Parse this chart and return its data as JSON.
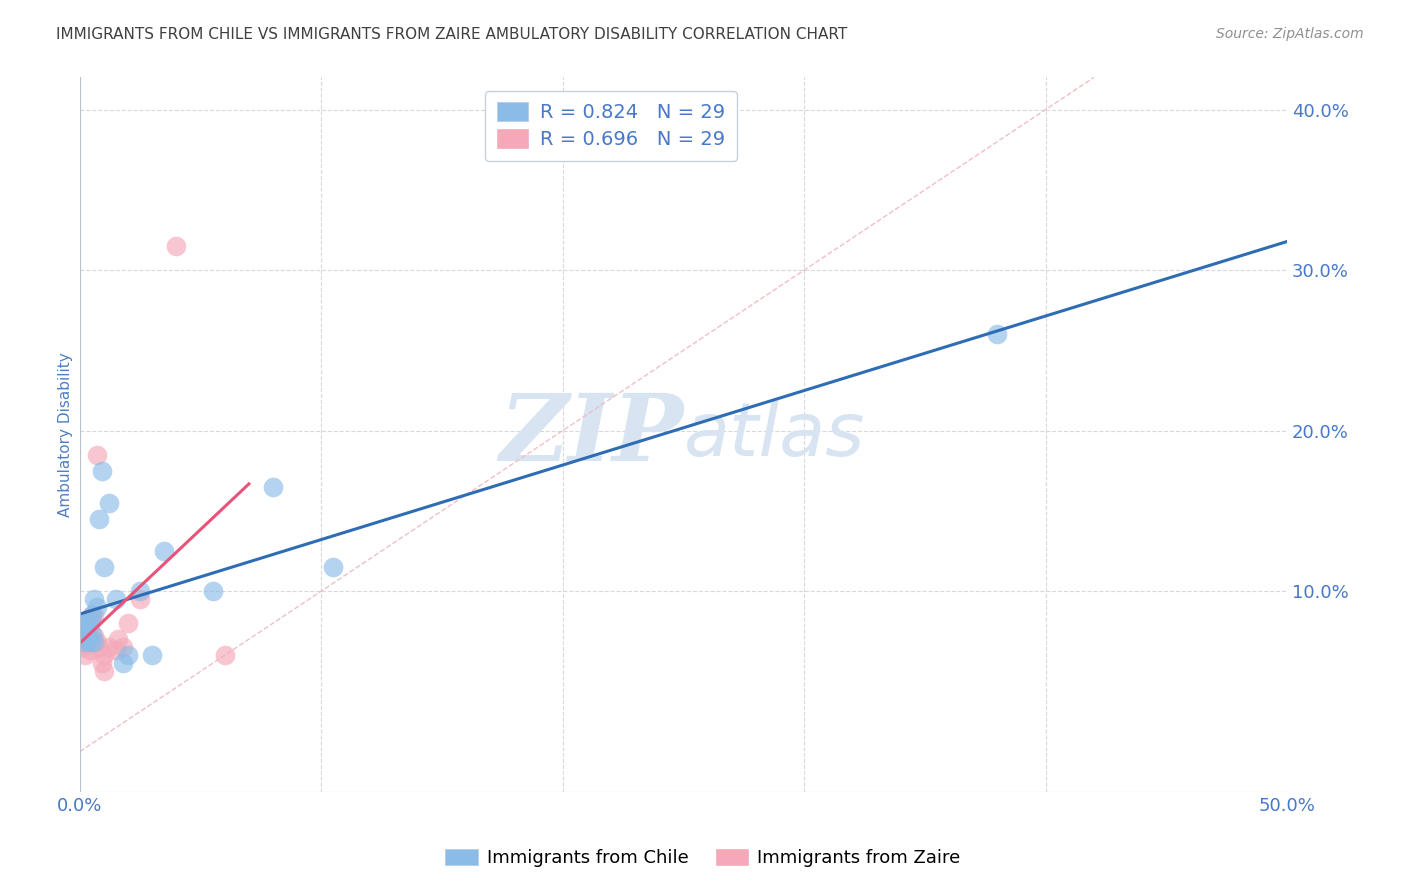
{
  "title": "IMMIGRANTS FROM CHILE VS IMMIGRANTS FROM ZAIRE AMBULATORY DISABILITY CORRELATION CHART",
  "source": "Source: ZipAtlas.com",
  "ylabel": "Ambulatory Disability",
  "xlim": [
    0.0,
    0.5
  ],
  "ylim": [
    -0.025,
    0.42
  ],
  "yticks_right": [
    0.1,
    0.2,
    0.3,
    0.4
  ],
  "ytick_right_labels": [
    "10.0%",
    "20.0%",
    "30.0%",
    "40.0%"
  ],
  "legend_r_chile": "R = 0.824",
  "legend_n_chile": "N = 29",
  "legend_r_zaire": "R = 0.696",
  "legend_n_zaire": "N = 29",
  "color_chile": "#8BBCE8",
  "color_zaire": "#F4A8B8",
  "line_color_chile": "#2E6DB4",
  "line_color_zaire": "#E8537A",
  "diag_line_color": "#F0B8C0",
  "watermark_zip": "ZIP",
  "watermark_atlas": "atlas",
  "watermark_color": "#D8E4F2",
  "background": "#FFFFFF",
  "title_color": "#404040",
  "axis_label_color": "#5080C0",
  "grid_color": "#D8D8E0",
  "tick_label_color": "#4878C8",
  "source_color": "#909090",
  "chile_x": [
    0.001,
    0.001,
    0.002,
    0.002,
    0.002,
    0.003,
    0.003,
    0.003,
    0.004,
    0.004,
    0.005,
    0.005,
    0.006,
    0.006,
    0.007,
    0.008,
    0.009,
    0.01,
    0.012,
    0.015,
    0.018,
    0.02,
    0.025,
    0.03,
    0.035,
    0.055,
    0.08,
    0.105,
    0.38
  ],
  "chile_y": [
    0.073,
    0.08,
    0.075,
    0.068,
    0.07,
    0.08,
    0.072,
    0.078,
    0.068,
    0.082,
    0.073,
    0.085,
    0.068,
    0.095,
    0.09,
    0.145,
    0.175,
    0.115,
    0.155,
    0.095,
    0.055,
    0.06,
    0.1,
    0.06,
    0.125,
    0.1,
    0.165,
    0.115,
    0.26
  ],
  "zaire_x": [
    0.001,
    0.001,
    0.002,
    0.002,
    0.002,
    0.003,
    0.003,
    0.003,
    0.004,
    0.004,
    0.005,
    0.005,
    0.005,
    0.006,
    0.006,
    0.007,
    0.007,
    0.008,
    0.009,
    0.01,
    0.01,
    0.012,
    0.015,
    0.016,
    0.018,
    0.02,
    0.025,
    0.06,
    0.04
  ],
  "zaire_y": [
    0.075,
    0.065,
    0.07,
    0.06,
    0.08,
    0.072,
    0.068,
    0.075,
    0.078,
    0.063,
    0.082,
    0.07,
    0.085,
    0.072,
    0.085,
    0.185,
    0.068,
    0.065,
    0.055,
    0.05,
    0.06,
    0.065,
    0.063,
    0.07,
    0.065,
    0.08,
    0.095,
    0.06,
    0.315
  ],
  "chile_line_xrange": [
    0.0,
    0.5
  ],
  "zaire_line_xrange": [
    0.0,
    0.07
  ]
}
